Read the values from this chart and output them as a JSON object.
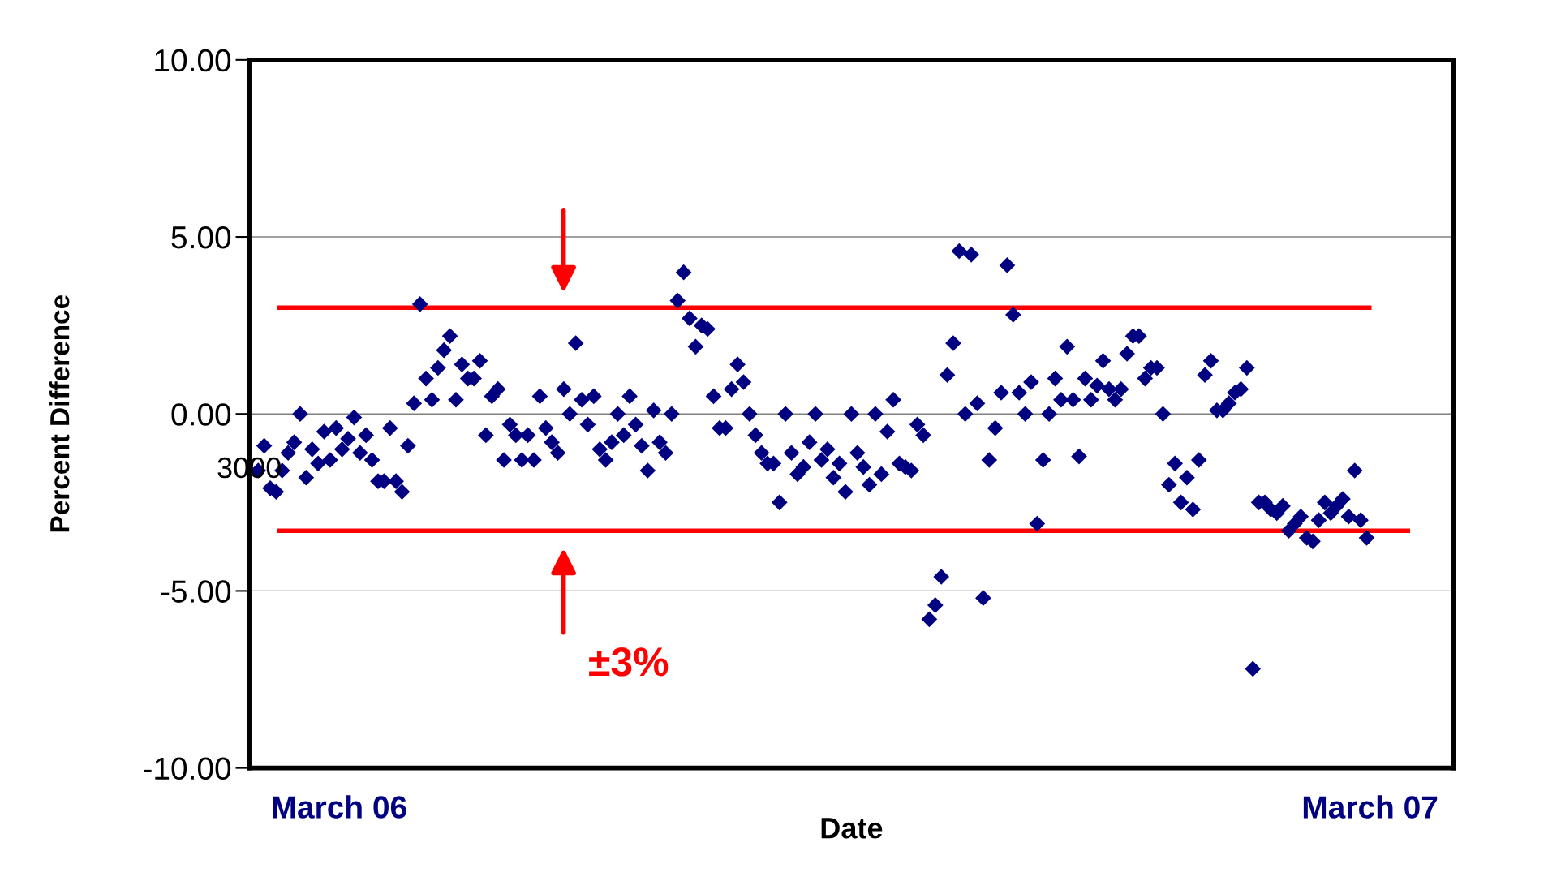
{
  "chart_data": {
    "type": "scatter",
    "xlabel": "Date",
    "ylabel": "Percent Difference",
    "categories": [
      null,
      null,
      null,
      null,
      null,
      null,
      null,
      null,
      null,
      null,
      null,
      null,
      null,
      null,
      null,
      null,
      null,
      null,
      null,
      null,
      null,
      null,
      null,
      null,
      null,
      null,
      null,
      null,
      null,
      null,
      null,
      null,
      null,
      null,
      null,
      null,
      null,
      null,
      null,
      null,
      null,
      null,
      null,
      null,
      null,
      null,
      null,
      null,
      null,
      null,
      null,
      null,
      null,
      null,
      null,
      null,
      null,
      null,
      null,
      null,
      null,
      null,
      null,
      null,
      null,
      null,
      null,
      null,
      null,
      null,
      null,
      null,
      null,
      null,
      null,
      null,
      null,
      null,
      null,
      null,
      null,
      null,
      null,
      null,
      null,
      null,
      null,
      null,
      null,
      null,
      null,
      null,
      null,
      null,
      null,
      null,
      null,
      null,
      null,
      null,
      null,
      null,
      null,
      null,
      null,
      null,
      null,
      null,
      null,
      null,
      null,
      null,
      null,
      null,
      null,
      null,
      null,
      null,
      null,
      null,
      null,
      null,
      null,
      null,
      null,
      null,
      null,
      null,
      null,
      null,
      null,
      null,
      null,
      null,
      null,
      null,
      null,
      null,
      null,
      null,
      null,
      null,
      null,
      null,
      null,
      null,
      null,
      null,
      null,
      null,
      null,
      null,
      null,
      null,
      null,
      null,
      null,
      null,
      null,
      null,
      null,
      null,
      null,
      null,
      null,
      null,
      null,
      null,
      null,
      null,
      null,
      null,
      null,
      null,
      null,
      null,
      null,
      null,
      null,
      null,
      null,
      null,
      null,
      null,
      null,
      null,
      null,
      null,
      null,
      null,
      null,
      null,
      null,
      null,
      null,
      null,
      null,
      null,
      null,
      null,
      null
    ],
    "ylim": [
      -10,
      10
    ],
    "yticks": [
      {
        "value": -10,
        "label": "-10.00"
      },
      {
        "value": -5,
        "label": "-5.00"
      },
      {
        "value": 0,
        "label": "0.00"
      },
      {
        "value": 5,
        "label": "5.00"
      },
      {
        "value": 10,
        "label": "10.00"
      }
    ],
    "grid": "y",
    "marker": "diamond",
    "series": [
      {
        "color": "#000080",
        "values": [
          null,
          -1.6,
          -0.9,
          -2.1,
          -2.2,
          -1.6,
          -1.1,
          -0.8,
          0.0,
          -1.8,
          -1.0,
          -1.4,
          -0.5,
          -1.3,
          -0.4,
          -1.0,
          -0.7,
          -0.1,
          -1.1,
          -0.6,
          -1.3,
          -1.9,
          -1.9,
          -0.4,
          -1.9,
          -2.2,
          -0.9,
          0.3,
          3.1,
          1.0,
          0.4,
          1.3,
          1.8,
          2.2,
          0.4,
          1.4,
          1.0,
          1.0,
          1.5,
          -0.6,
          0.5,
          0.7,
          -1.3,
          -0.3,
          -0.6,
          -1.3,
          -0.6,
          -1.3,
          0.5,
          -0.4,
          -0.8,
          -1.1,
          0.7,
          0.0,
          2.0,
          0.4,
          -0.3,
          0.5,
          -1.0,
          -1.3,
          -0.8,
          0.0,
          -0.6,
          0.5,
          -0.3,
          -0.9,
          -1.6,
          0.1,
          -0.8,
          -1.1,
          0.0,
          3.2,
          4.0,
          2.7,
          1.9,
          2.5,
          2.4,
          0.5,
          -0.4,
          -0.4,
          0.7,
          1.4,
          0.9,
          0.0,
          -0.6,
          -1.1,
          -1.4,
          -1.4,
          -2.5,
          0.0,
          -1.1,
          -1.7,
          -1.5,
          -0.8,
          0.0,
          -1.3,
          -1.0,
          -1.8,
          -1.4,
          -2.2,
          0.0,
          -1.1,
          -1.5,
          -2.0,
          0.0,
          -1.7,
          -0.5,
          0.4,
          -1.4,
          -1.5,
          -1.6,
          -0.3,
          -0.6,
          -5.8,
          -5.4,
          -4.6,
          1.1,
          2.0,
          4.6,
          0.0,
          4.5,
          0.3,
          -5.2,
          -1.3,
          -0.4,
          0.6,
          4.2,
          2.8,
          0.6,
          0.0,
          0.9,
          -3.1,
          -1.3,
          0.0,
          1.0,
          0.4,
          1.9,
          0.4,
          -1.2,
          1.0,
          0.4,
          0.8,
          1.5,
          0.7,
          0.4,
          0.7,
          1.7,
          2.2,
          2.2,
          1.0,
          1.3,
          1.3,
          0.0,
          -2.0,
          -1.4,
          -2.5,
          -1.8,
          -2.7,
          -1.3,
          1.1,
          1.5,
          0.1,
          0.1,
          0.3,
          0.6,
          0.7,
          1.3,
          -7.2,
          -2.5,
          -2.5,
          -2.7,
          -2.8,
          -2.6,
          -3.3,
          -3.1,
          -2.9,
          -3.5,
          -3.6,
          -3.0,
          -2.5,
          -2.8,
          -2.6,
          -2.4,
          -2.9,
          -1.6,
          -3.0,
          -3.5,
          null,
          null,
          null,
          null,
          null,
          null,
          null,
          null,
          null,
          null,
          null,
          null,
          null,
          null
        ]
      }
    ],
    "ref_lines": [
      {
        "axis": "y",
        "value": 3,
        "label": null,
        "color": "#ff0000"
      },
      {
        "axis": "y",
        "value": -3.3,
        "label": null,
        "color": "#ff0000"
      }
    ],
    "annotations": [
      "3000",
      "±3%",
      "March 06",
      "March 07"
    ]
  }
}
